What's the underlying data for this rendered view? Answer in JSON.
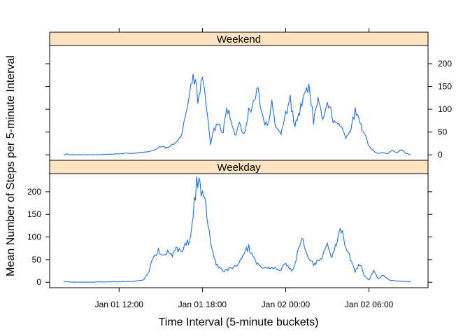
{
  "chart_data": {
    "type": "line",
    "xlabel": "Time Interval (5-minute buckets)",
    "ylabel": "Mean Number of Steps per 5-minute Interval",
    "x_domain": [
      "Jan 01 08:00",
      "Jan 02 09:00"
    ],
    "xlim": [
      "Jan 01 07:00",
      "Jan 02 10:15"
    ],
    "x_ticks": [
      {
        "t": "Jan 01 12:00",
        "label": "Jan 01 12:00"
      },
      {
        "t": "Jan 01 18:00",
        "label": "Jan 01 18:00"
      },
      {
        "t": "Jan 02 00:00",
        "label": "Jan 02 00:00"
      },
      {
        "t": "Jan 02 06:00",
        "label": "Jan 02 06:00"
      }
    ],
    "ylim": [
      -12,
      240
    ],
    "y_ticks": [
      0,
      50,
      100,
      150,
      200
    ],
    "y_tick_labels": [
      "0",
      "50",
      "100",
      "150",
      "200"
    ],
    "line_color": "#1f6fe8",
    "strip_color": "#ffe4c4",
    "panels": [
      {
        "name": "Weekend",
        "anchors": [
          [
            "Jan 01 08:00",
            0
          ],
          [
            "Jan 01 08:15",
            2
          ],
          [
            "Jan 01 08:30",
            0
          ],
          [
            "Jan 01 09:00",
            0
          ],
          [
            "Jan 01 10:00",
            0
          ],
          [
            "Jan 01 11:00",
            1
          ],
          [
            "Jan 01 12:00",
            2
          ],
          [
            "Jan 01 12:30",
            4
          ],
          [
            "Jan 01 13:00",
            3
          ],
          [
            "Jan 01 13:30",
            5
          ],
          [
            "Jan 01 14:00",
            6
          ],
          [
            "Jan 01 14:30",
            10
          ],
          [
            "Jan 01 15:00",
            18
          ],
          [
            "Jan 01 15:30",
            15
          ],
          [
            "Jan 01 16:00",
            25
          ],
          [
            "Jan 01 16:30",
            45
          ],
          [
            "Jan 01 16:50",
            95
          ],
          [
            "Jan 01 17:10",
            150
          ],
          [
            "Jan 01 17:30",
            170
          ],
          [
            "Jan 01 17:40",
            110
          ],
          [
            "Jan 01 18:00",
            175
          ],
          [
            "Jan 01 18:10",
            130
          ],
          [
            "Jan 01 18:25",
            80
          ],
          [
            "Jan 01 18:35",
            20
          ],
          [
            "Jan 01 18:50",
            55
          ],
          [
            "Jan 01 19:10",
            65
          ],
          [
            "Jan 01 19:30",
            50
          ],
          [
            "Jan 01 19:45",
            110
          ],
          [
            "Jan 01 20:00",
            80
          ],
          [
            "Jan 01 20:20",
            40
          ],
          [
            "Jan 01 20:40",
            70
          ],
          [
            "Jan 01 21:00",
            45
          ],
          [
            "Jan 01 21:20",
            95
          ],
          [
            "Jan 01 21:40",
            110
          ],
          [
            "Jan 01 22:00",
            145
          ],
          [
            "Jan 01 22:20",
            85
          ],
          [
            "Jan 01 22:40",
            60
          ],
          [
            "Jan 01 23:00",
            110
          ],
          [
            "Jan 01 23:20",
            55
          ],
          [
            "Jan 01 23:40",
            45
          ],
          [
            "Jan 02 00:00",
            90
          ],
          [
            "Jan 02 00:20",
            120
          ],
          [
            "Jan 02 00:40",
            65
          ],
          [
            "Jan 02 01:00",
            95
          ],
          [
            "Jan 02 01:20",
            130
          ],
          [
            "Jan 02 01:40",
            155
          ],
          [
            "Jan 02 02:00",
            75
          ],
          [
            "Jan 02 02:20",
            115
          ],
          [
            "Jan 02 02:40",
            80
          ],
          [
            "Jan 02 03:00",
            120
          ],
          [
            "Jan 02 03:30",
            70
          ],
          [
            "Jan 02 04:00",
            60
          ],
          [
            "Jan 02 04:20",
            40
          ],
          [
            "Jan 02 04:40",
            55
          ],
          [
            "Jan 02 05:00",
            95
          ],
          [
            "Jan 02 05:20",
            70
          ],
          [
            "Jan 02 05:40",
            45
          ],
          [
            "Jan 02 06:00",
            20
          ],
          [
            "Jan 02 06:20",
            8
          ],
          [
            "Jan 02 06:40",
            3
          ],
          [
            "Jan 02 07:00",
            5
          ],
          [
            "Jan 02 07:20",
            2
          ],
          [
            "Jan 02 07:40",
            10
          ],
          [
            "Jan 02 08:00",
            4
          ],
          [
            "Jan 02 08:20",
            12
          ],
          [
            "Jan 02 08:40",
            3
          ],
          [
            "Jan 02 09:00",
            0
          ]
        ]
      },
      {
        "name": "Weekday",
        "anchors": [
          [
            "Jan 01 08:00",
            1
          ],
          [
            "Jan 01 09:00",
            0
          ],
          [
            "Jan 01 10:00",
            0
          ],
          [
            "Jan 01 11:00",
            1
          ],
          [
            "Jan 01 12:00",
            1
          ],
          [
            "Jan 01 13:00",
            2
          ],
          [
            "Jan 01 13:45",
            5
          ],
          [
            "Jan 01 14:10",
            25
          ],
          [
            "Jan 01 14:30",
            60
          ],
          [
            "Jan 01 14:50",
            72
          ],
          [
            "Jan 01 15:10",
            55
          ],
          [
            "Jan 01 15:30",
            65
          ],
          [
            "Jan 01 15:50",
            60
          ],
          [
            "Jan 01 16:10",
            75
          ],
          [
            "Jan 01 16:30",
            62
          ],
          [
            "Jan 01 16:50",
            85
          ],
          [
            "Jan 01 17:10",
            100
          ],
          [
            "Jan 01 17:30",
            200
          ],
          [
            "Jan 01 17:40",
            232
          ],
          [
            "Jan 01 18:00",
            205
          ],
          [
            "Jan 01 18:20",
            150
          ],
          [
            "Jan 01 18:40",
            80
          ],
          [
            "Jan 01 19:00",
            40
          ],
          [
            "Jan 01 19:30",
            25
          ],
          [
            "Jan 01 20:00",
            30
          ],
          [
            "Jan 01 20:30",
            35
          ],
          [
            "Jan 01 21:00",
            60
          ],
          [
            "Jan 01 21:20",
            80
          ],
          [
            "Jan 01 21:40",
            55
          ],
          [
            "Jan 01 22:00",
            40
          ],
          [
            "Jan 01 22:30",
            30
          ],
          [
            "Jan 01 23:00",
            35
          ],
          [
            "Jan 01 23:30",
            25
          ],
          [
            "Jan 02 00:00",
            40
          ],
          [
            "Jan 02 00:30",
            25
          ],
          [
            "Jan 02 00:50",
            60
          ],
          [
            "Jan 02 01:10",
            95
          ],
          [
            "Jan 02 01:30",
            60
          ],
          [
            "Jan 02 02:00",
            40
          ],
          [
            "Jan 02 02:30",
            50
          ],
          [
            "Jan 02 03:00",
            80
          ],
          [
            "Jan 02 03:20",
            60
          ],
          [
            "Jan 02 03:40",
            85
          ],
          [
            "Jan 02 04:00",
            115
          ],
          [
            "Jan 02 04:20",
            80
          ],
          [
            "Jan 02 04:40",
            50
          ],
          [
            "Jan 02 05:00",
            25
          ],
          [
            "Jan 02 05:20",
            40
          ],
          [
            "Jan 02 05:40",
            15
          ],
          [
            "Jan 02 06:00",
            5
          ],
          [
            "Jan 02 06:20",
            25
          ],
          [
            "Jan 02 06:40",
            8
          ],
          [
            "Jan 02 07:00",
            15
          ],
          [
            "Jan 02 07:30",
            5
          ],
          [
            "Jan 02 08:00",
            3
          ],
          [
            "Jan 02 08:30",
            2
          ],
          [
            "Jan 02 09:00",
            1
          ]
        ]
      }
    ]
  }
}
